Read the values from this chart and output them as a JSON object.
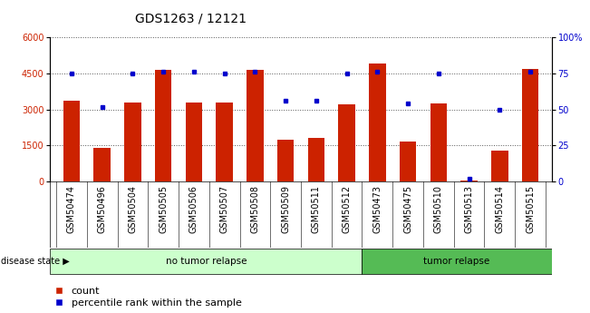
{
  "title": "GDS1263 / 12121",
  "samples": [
    "GSM50474",
    "GSM50496",
    "GSM50504",
    "GSM50505",
    "GSM50506",
    "GSM50507",
    "GSM50508",
    "GSM50509",
    "GSM50511",
    "GSM50512",
    "GSM50473",
    "GSM50475",
    "GSM50510",
    "GSM50513",
    "GSM50514",
    "GSM50515"
  ],
  "counts": [
    3350,
    1400,
    3300,
    4650,
    3300,
    3300,
    4650,
    1750,
    1800,
    3200,
    4900,
    1650,
    3250,
    50,
    1300,
    4700
  ],
  "percentiles": [
    75,
    52,
    75,
    76,
    76,
    75,
    76,
    56,
    56,
    75,
    76,
    54,
    75,
    2,
    50,
    76
  ],
  "no_tumor_count": 10,
  "tumor_count": 6,
  "group1_label": "no tumor relapse",
  "group2_label": "tumor relapse",
  "disease_state_label": "disease state",
  "bar_color": "#cc2200",
  "dot_color": "#0000cc",
  "ylim_left": [
    0,
    6000
  ],
  "ylim_right": [
    0,
    100
  ],
  "yticks_left": [
    0,
    1500,
    3000,
    4500,
    6000
  ],
  "yticks_right": [
    0,
    25,
    50,
    75,
    100
  ],
  "ytick_labels_left": [
    "0",
    "1500",
    "3000",
    "4500",
    "6000"
  ],
  "ytick_labels_right": [
    "0",
    "25",
    "50",
    "75",
    "100%"
  ],
  "legend_count_label": "count",
  "legend_pct_label": "percentile rank within the sample",
  "bg_color": "#ffffff",
  "group_bg_color_light": "#ccffcc",
  "group_bg_color_green": "#55bb55",
  "tick_area_color": "#cccccc",
  "dotted_line_color": "#555555",
  "title_fontsize": 10,
  "tick_label_fontsize": 7,
  "legend_fontsize": 8
}
